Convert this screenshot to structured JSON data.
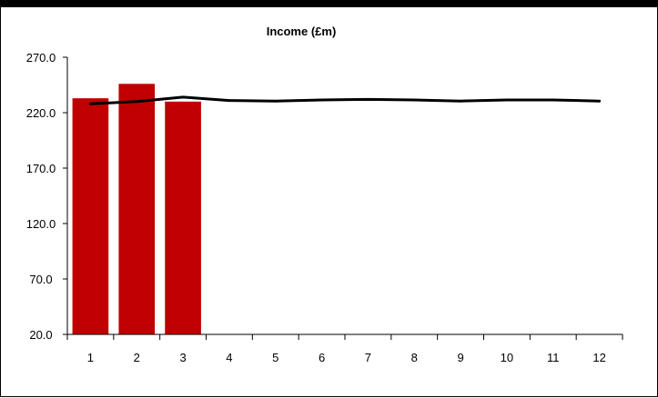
{
  "chart_data": {
    "type": "bar",
    "title": "Income (£m)",
    "xlabel": "",
    "ylabel": "",
    "categories": [
      "1",
      "2",
      "3",
      "4",
      "5",
      "6",
      "7",
      "8",
      "9",
      "10",
      "11",
      "12"
    ],
    "ylim": [
      20.0,
      270.0
    ],
    "yticks": [
      "20.0",
      "70.0",
      "120.0",
      "170.0",
      "220.0",
      "270.0"
    ],
    "series": [
      {
        "type": "bar",
        "values": [
          233,
          246,
          230,
          null,
          null,
          null,
          null,
          null,
          null,
          null,
          null,
          null
        ],
        "color": "#c00000"
      },
      {
        "type": "line",
        "values": [
          228,
          230,
          234,
          231,
          230.5,
          231.5,
          232,
          231.5,
          230.5,
          231.5,
          231.5,
          230.5
        ],
        "color": "#000000"
      }
    ],
    "legend": "none",
    "grid": false
  }
}
